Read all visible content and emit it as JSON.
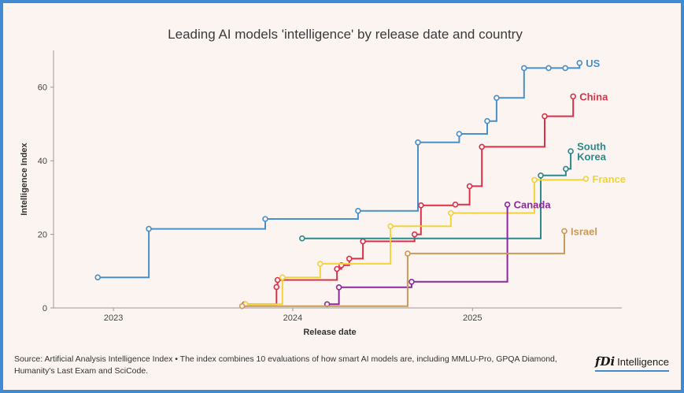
{
  "chart_data": {
    "type": "line",
    "title": "Leading AI models 'intelligence' by release date and country",
    "xlabel": "Release date",
    "ylabel": "Intelligence Index",
    "x_ticks": [
      "2023",
      "2024",
      "2025"
    ],
    "y_ticks": [
      "0",
      "20",
      "40",
      "60"
    ],
    "ylim": [
      0,
      70
    ],
    "xlim": [
      "2022-09-01",
      "2025-11-01"
    ],
    "step": true,
    "grid": false,
    "series": [
      {
        "name": "US",
        "color": "#4a90c8",
        "label_lines": [
          "US"
        ],
        "points": [
          [
            "2022-11-30",
            8.3
          ],
          [
            "2023-03-14",
            21.5
          ],
          [
            "2023-11-06",
            24.2
          ],
          [
            "2024-05-13",
            26.4
          ],
          [
            "2024-09-12",
            45.0
          ],
          [
            "2024-12-05",
            47.3
          ],
          [
            "2025-01-31",
            50.8
          ],
          [
            "2025-02-19",
            57.1
          ],
          [
            "2025-04-16",
            65.2
          ],
          [
            "2025-06-05",
            65.2
          ],
          [
            "2025-07-09",
            65.2
          ],
          [
            "2025-08-07",
            66.6
          ]
        ]
      },
      {
        "name": "China",
        "color": "#d8324a",
        "label_lines": [
          "China"
        ],
        "points": [
          [
            "2023-09-25",
            1.0
          ],
          [
            "2023-11-29",
            5.7
          ],
          [
            "2023-12-01",
            7.6
          ],
          [
            "2024-03-31",
            10.6
          ],
          [
            "2024-04-09",
            11.6
          ],
          [
            "2024-04-25",
            13.4
          ],
          [
            "2024-05-23",
            18.1
          ],
          [
            "2024-09-05",
            20.0
          ],
          [
            "2024-09-18",
            27.9
          ],
          [
            "2024-11-27",
            28.1
          ],
          [
            "2024-12-26",
            33.1
          ],
          [
            "2025-01-20",
            43.8
          ],
          [
            "2025-05-28",
            52.1
          ],
          [
            "2025-07-25",
            57.5
          ]
        ]
      },
      {
        "name": "South Korea",
        "color": "#2a8a8a",
        "label_lines": [
          "South",
          "Korea"
        ],
        "points": [
          [
            "2024-01-20",
            18.9
          ],
          [
            "2025-05-20",
            36.0
          ],
          [
            "2025-07-10",
            37.8
          ],
          [
            "2025-07-20",
            42.6
          ]
        ]
      },
      {
        "name": "France",
        "color": "#f2d33a",
        "label_lines": [
          "France"
        ],
        "points": [
          [
            "2023-09-27",
            1.0
          ],
          [
            "2023-12-11",
            8.3
          ],
          [
            "2024-02-26",
            12.0
          ],
          [
            "2024-07-18",
            22.2
          ],
          [
            "2024-11-18",
            25.8
          ],
          [
            "2025-05-07",
            34.8
          ],
          [
            "2025-08-20",
            35.1
          ]
        ]
      },
      {
        "name": "Canada",
        "color": "#8b2a9c",
        "label_lines": [
          "Canada"
        ],
        "points": [
          [
            "2024-03-11",
            1.0
          ],
          [
            "2024-04-04",
            5.6
          ],
          [
            "2024-08-30",
            7.1
          ],
          [
            "2025-03-13",
            28.1
          ]
        ]
      },
      {
        "name": "Israel",
        "color": "#c99a5a",
        "label_lines": [
          "Israel"
        ],
        "points": [
          [
            "2023-09-20",
            0.5
          ],
          [
            "2024-08-22",
            14.8
          ],
          [
            "2025-07-07",
            20.9
          ]
        ]
      }
    ]
  },
  "footer": {
    "source_text": "Source: Artificial Analysis Intelligence Index • The index combines 10 evaluations of how smart AI models are, including MMLU-Pro, GPQA Diamond, Humanity's Last Exam and SciCode.",
    "logo_mark": "fDi",
    "logo_text": "Intelligence"
  }
}
